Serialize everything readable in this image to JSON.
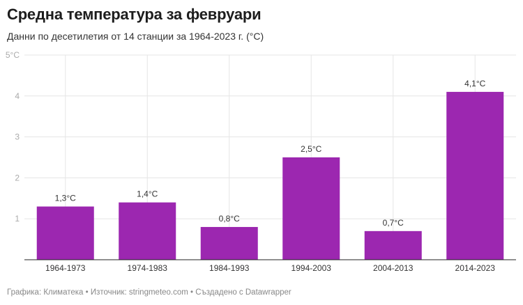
{
  "header": {
    "title": "Средна температура за февруари",
    "subtitle": "Данни по десетилетия от 14 станции за 1964-2023 г. (°C)"
  },
  "footer": "Графика: Климатека • Източник: stringmeteo.com • Създадено с Datawrapper",
  "colors": {
    "bar": "#9c27b0"
  },
  "chart_data": {
    "type": "bar",
    "categories": [
      "1964-1973",
      "1974-1983",
      "1984-1993",
      "1994-2003",
      "2004-2013",
      "2014-2023"
    ],
    "values": [
      1.3,
      1.4,
      0.8,
      2.5,
      0.7,
      4.1
    ],
    "data_labels": [
      "1,3°C",
      "1,4°C",
      "0,8°C",
      "2,5°C",
      "0,7°C",
      "4,1°C"
    ],
    "ylim": [
      0,
      5
    ],
    "yticks": [
      1,
      2,
      3,
      4,
      5
    ],
    "ytick_labels": [
      "1",
      "2",
      "3",
      "4",
      "5°C"
    ],
    "grid": true,
    "xlabel": "",
    "ylabel": ""
  }
}
